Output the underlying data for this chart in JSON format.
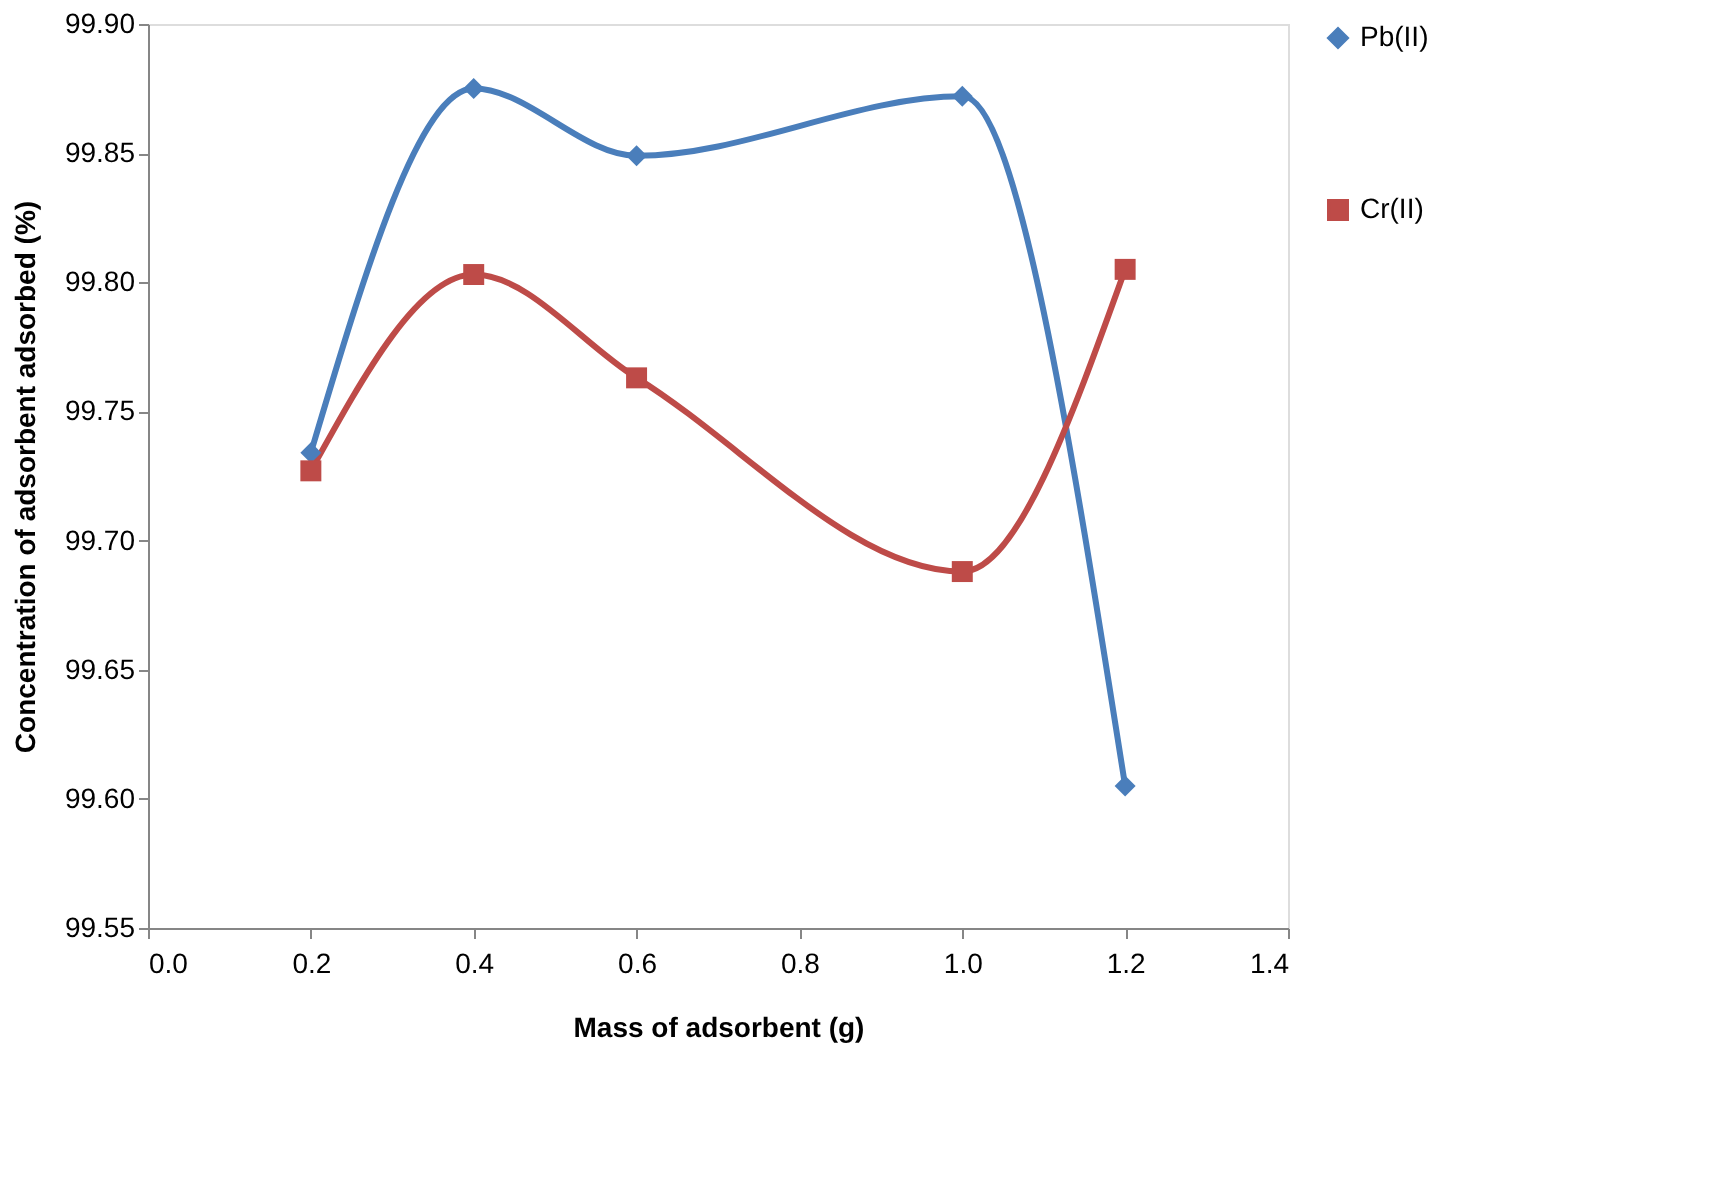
{
  "chart_data": {
    "type": "line",
    "xlabel": "Mass of adsorbent (g)",
    "ylabel": "Concentration of adsorbent adsorbed (%)",
    "x": [
      0.2,
      0.4,
      0.6,
      1.0,
      1.2
    ],
    "series": [
      {
        "name": "Pb(II)",
        "color": "#4a7ebb",
        "marker": "diamond",
        "values": [
          99.734,
          99.875,
          99.849,
          99.872,
          99.605
        ]
      },
      {
        "name": "Cr(II)",
        "color": "#be4b48",
        "marker": "square",
        "values": [
          99.727,
          99.803,
          99.763,
          99.688,
          99.805
        ]
      }
    ],
    "xlim": [
      0.0,
      1.4
    ],
    "xticks": [
      {
        "value": 0,
        "label": "0.0"
      },
      {
        "value": 0.2,
        "label": "0.2"
      },
      {
        "value": 0.4,
        "label": "0.4"
      },
      {
        "value": 0.6,
        "label": "0.6"
      },
      {
        "value": 0.8,
        "label": "0.8"
      },
      {
        "value": 1.0,
        "label": "1.0"
      },
      {
        "value": 1.2,
        "label": "1.2"
      },
      {
        "value": 1.4,
        "label": "1.4"
      }
    ],
    "ylim": [
      99.55,
      99.9
    ],
    "yticks": [
      {
        "value": 99.55,
        "label": "99.55"
      },
      {
        "value": 99.6,
        "label": "99.60"
      },
      {
        "value": 99.65,
        "label": "99.65"
      },
      {
        "value": 99.7,
        "label": "99.70"
      },
      {
        "value": 99.75,
        "label": "99.75"
      },
      {
        "value": 99.8,
        "label": "99.80"
      },
      {
        "value": 99.85,
        "label": "99.85"
      },
      {
        "value": 99.9,
        "label": "99.90"
      }
    ],
    "grid": false,
    "legend": "right",
    "line_style": "solid"
  }
}
